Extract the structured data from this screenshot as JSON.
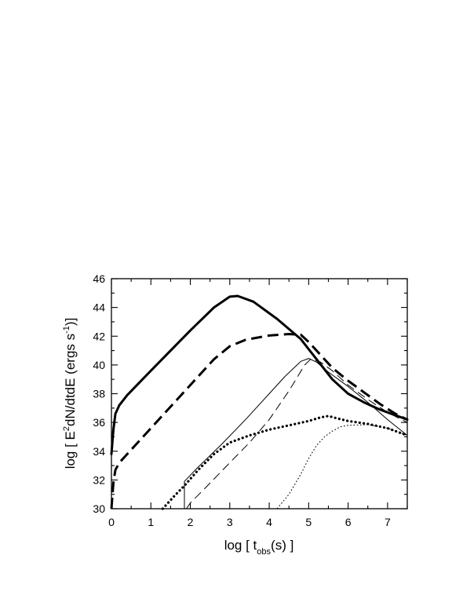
{
  "chart_data": {
    "type": "line",
    "title": "",
    "xlabel_parts": {
      "pre": "log  [  t",
      "sub": "obs",
      "post": "(s)  ]"
    },
    "ylabel_parts": {
      "pre": "log [ E",
      "sup1": "2",
      "mid": "dN/dtdE   (ergs  s",
      "sup2": "-1",
      "post": ")]"
    },
    "xlim": [
      0,
      7.5
    ],
    "ylim": [
      30,
      46
    ],
    "xticks": [
      0,
      1,
      2,
      3,
      4,
      5,
      6,
      7
    ],
    "yticks": [
      30,
      32,
      34,
      36,
      38,
      40,
      42,
      44,
      46
    ],
    "grid": false,
    "legend": "none",
    "series": [
      {
        "style": "thick-solid",
        "x": [
          0,
          0.05,
          0.1,
          0.2,
          0.4,
          1.0,
          2.0,
          2.6,
          3.0,
          3.2,
          3.6,
          4.2,
          4.8,
          5.2,
          5.6,
          6.0,
          6.4,
          6.8,
          7.2,
          7.5
        ],
        "y": [
          33.8,
          35.5,
          36.6,
          37.2,
          37.9,
          39.6,
          42.4,
          44.0,
          44.75,
          44.8,
          44.4,
          43.2,
          41.8,
          40.4,
          39.0,
          38.0,
          37.4,
          36.9,
          36.5,
          36.2
        ]
      },
      {
        "style": "thick-dashed",
        "x": [
          0,
          0.05,
          0.1,
          0.2,
          0.4,
          1.0,
          2.0,
          2.6,
          3.0,
          3.4,
          4.0,
          4.5,
          4.8,
          5.0,
          5.3,
          5.6,
          6.0,
          6.4,
          6.8,
          7.2,
          7.5
        ],
        "y": [
          30.0,
          31.8,
          32.7,
          33.2,
          33.8,
          35.6,
          38.6,
          40.4,
          41.3,
          41.75,
          42.05,
          42.15,
          42.1,
          41.6,
          40.7,
          39.8,
          38.9,
          38.1,
          37.3,
          36.6,
          36.2
        ]
      },
      {
        "style": "thin-solid",
        "x": [
          1.85,
          1.85,
          2.2,
          2.8,
          3.4,
          4.0,
          4.4,
          4.8,
          5.0,
          5.2,
          5.5,
          6.0,
          6.5,
          7.0,
          7.5
        ],
        "y": [
          30.0,
          31.9,
          32.9,
          34.5,
          36.2,
          38.0,
          39.2,
          40.25,
          40.45,
          40.2,
          39.5,
          38.5,
          37.4,
          36.2,
          35.1
        ]
      },
      {
        "style": "thin-dashed",
        "x": [
          1.9,
          2.0,
          2.4,
          3.0,
          3.5,
          4.0,
          4.5,
          4.9,
          5.05,
          5.3,
          5.6,
          6.0,
          6.5,
          7.0,
          7.5
        ],
        "y": [
          30.0,
          30.4,
          31.5,
          33.2,
          34.6,
          36.2,
          38.2,
          40.0,
          40.4,
          40.2,
          39.6,
          38.6,
          37.6,
          36.7,
          36.0
        ]
      },
      {
        "style": "thick-dotted",
        "x": [
          1.3,
          1.6,
          1.85,
          2.2,
          2.6,
          3.0,
          3.5,
          4.0,
          4.5,
          5.0,
          5.3,
          5.5,
          5.7,
          6.0,
          6.5,
          7.0,
          7.5
        ],
        "y": [
          30.0,
          30.9,
          31.6,
          32.7,
          33.8,
          34.6,
          35.1,
          35.5,
          35.8,
          36.1,
          36.35,
          36.45,
          36.3,
          36.1,
          35.9,
          35.6,
          35.1
        ]
      },
      {
        "style": "thin-dotted",
        "x": [
          4.2,
          4.5,
          4.8,
          5.0,
          5.2,
          5.4,
          5.6,
          5.8,
          6.0,
          6.5,
          7.0,
          7.5
        ],
        "y": [
          30.0,
          31.0,
          32.4,
          33.5,
          34.4,
          35.0,
          35.4,
          35.7,
          35.8,
          35.85,
          35.6,
          35.1
        ]
      }
    ]
  }
}
